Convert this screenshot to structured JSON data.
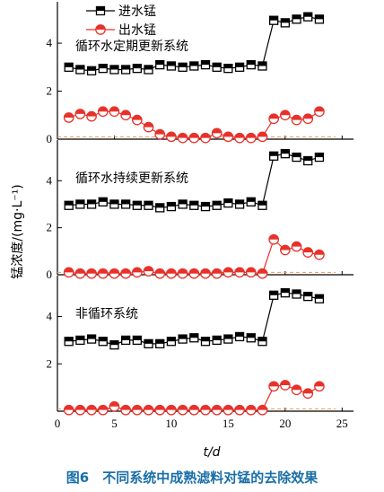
{
  "caption": "图6　不同系统中成熟滤料对锰的去除效果",
  "chart_data": {
    "type": "line",
    "xlabel": "t/d",
    "ylabel": "锰浓度/(mg·L⁻¹)",
    "xlim": [
      0,
      26
    ],
    "x_ticks": [
      0,
      5,
      10,
      15,
      20,
      25
    ],
    "legend": {
      "placement": "top-left",
      "entries": [
        {
          "label": "进水锰",
          "marker": "half-filled-square",
          "color": "#000000"
        },
        {
          "label": "出水锰",
          "marker": "half-filled-circle",
          "color": "#e8312a"
        }
      ]
    },
    "reference_line": {
      "y": 0.1,
      "style": "dashed",
      "color": "#e89a5a"
    },
    "panels": [
      {
        "label": "循环水定期更新系统",
        "ylim": [
          0,
          5.5
        ],
        "y_ticks": [
          0,
          2,
          4
        ],
        "series": [
          {
            "name": "进水锰",
            "x": [
              1,
              2,
              3,
              4,
              5,
              6,
              7,
              8,
              9,
              10,
              11,
              12,
              13,
              14,
              15,
              16,
              17,
              18,
              19,
              20,
              21,
              22,
              23
            ],
            "values": [
              3.0,
              2.9,
              2.85,
              2.95,
              2.9,
              2.9,
              2.95,
              2.9,
              3.1,
              3.05,
              3.0,
              3.05,
              3.1,
              3.0,
              2.95,
              3.0,
              3.1,
              3.05,
              4.95,
              4.85,
              5.0,
              5.1,
              5.0
            ]
          },
          {
            "name": "出水锰",
            "x": [
              1,
              2,
              3,
              4,
              5,
              6,
              7,
              8,
              9,
              10,
              11,
              12,
              13,
              14,
              15,
              16,
              17,
              18,
              19,
              20,
              21,
              22,
              23
            ],
            "values": [
              0.9,
              1.05,
              0.95,
              1.15,
              1.15,
              1.0,
              0.8,
              0.5,
              0.2,
              0.1,
              0.05,
              0.05,
              0.05,
              0.25,
              0.1,
              0.05,
              0.05,
              0.1,
              0.85,
              1.0,
              0.8,
              0.85,
              1.15
            ]
          }
        ]
      },
      {
        "label": "循环水持续更新系统",
        "ylim": [
          0,
          5.5
        ],
        "y_ticks": [
          0,
          2,
          4
        ],
        "series": [
          {
            "name": "进水锰",
            "x": [
              1,
              2,
              3,
              4,
              5,
              6,
              7,
              8,
              9,
              10,
              11,
              12,
              13,
              14,
              15,
              16,
              17,
              18,
              19,
              20,
              21,
              22,
              23
            ],
            "values": [
              2.95,
              3.0,
              3.0,
              3.1,
              3.0,
              3.0,
              2.95,
              2.95,
              2.85,
              2.9,
              3.0,
              2.95,
              2.9,
              2.95,
              3.05,
              3.0,
              3.1,
              2.95,
              5.05,
              5.15,
              5.0,
              4.85,
              5.0
            ]
          },
          {
            "name": "出水锰",
            "x": [
              1,
              2,
              3,
              4,
              5,
              6,
              7,
              8,
              9,
              10,
              11,
              12,
              13,
              14,
              15,
              16,
              17,
              18,
              19,
              20,
              21,
              22,
              23
            ],
            "values": [
              0.1,
              0.05,
              0.05,
              0.05,
              0.05,
              0.05,
              0.1,
              0.15,
              0.05,
              0.05,
              0.05,
              0.05,
              0.05,
              0.05,
              0.1,
              0.1,
              0.1,
              0.05,
              1.5,
              1.05,
              1.2,
              0.95,
              0.85
            ]
          }
        ]
      },
      {
        "label": "非循环系统",
        "ylim": [
          0,
          5.5
        ],
        "y_ticks": [
          2,
          4
        ],
        "series": [
          {
            "name": "进水锰",
            "x": [
              1,
              2,
              3,
              4,
              5,
              6,
              7,
              8,
              9,
              10,
              11,
              12,
              13,
              14,
              15,
              16,
              17,
              18,
              19,
              20,
              21,
              22,
              23
            ],
            "values": [
              2.95,
              3.0,
              3.05,
              2.95,
              2.8,
              3.0,
              3.0,
              2.85,
              2.85,
              2.95,
              3.05,
              3.1,
              2.95,
              3.0,
              3.05,
              3.15,
              3.1,
              2.95,
              4.9,
              5.0,
              4.95,
              4.85,
              4.75
            ]
          },
          {
            "name": "出水锰",
            "x": [
              1,
              2,
              3,
              4,
              5,
              6,
              7,
              8,
              9,
              10,
              11,
              12,
              13,
              14,
              15,
              16,
              17,
              18,
              19,
              20,
              21,
              22,
              23
            ],
            "values": [
              0.05,
              0.05,
              0.05,
              0.05,
              0.2,
              0.05,
              0.05,
              0.05,
              0.05,
              0.05,
              0.05,
              0.05,
              0.05,
              0.05,
              0.05,
              0.05,
              0.05,
              0.05,
              1.05,
              1.1,
              0.9,
              0.75,
              1.05
            ]
          }
        ]
      }
    ]
  }
}
